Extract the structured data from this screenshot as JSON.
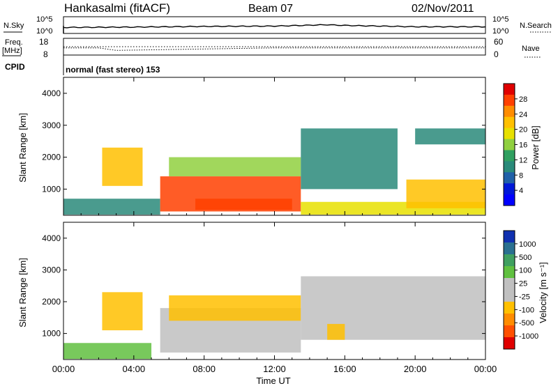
{
  "header": {
    "station": "Hankasalmi (fitACF)",
    "beam": "Beam 07",
    "date": "02/Nov/2011"
  },
  "noise_panel": {
    "left_label": "N.Sky",
    "right_label": "N.Search",
    "y_ticks": [
      "10^5",
      "10^0"
    ],
    "right_ticks": [
      "10^5",
      "10^0"
    ]
  },
  "freq_panel": {
    "left_label_lines": [
      "Freq.",
      "[MHz]"
    ],
    "left_ticks": [
      "18",
      "8"
    ],
    "right_label": "Nave",
    "right_ticks": [
      "60",
      "0"
    ]
  },
  "cpid": {
    "label": "CPID",
    "value": "normal (fast stereo) 153"
  },
  "power_panel": {
    "ylabel": "Slant Range [km]",
    "colorbar_label": "Power [dB]",
    "colorbar_ticks": [
      "28",
      "24",
      "20",
      "16",
      "12",
      "8",
      "4"
    ],
    "colorbar_colors": [
      "#e00000",
      "#ff4000",
      "#ff8c00",
      "#ffc000",
      "#e8e000",
      "#90d040",
      "#30a060",
      "#2a8a7a",
      "#2060a8",
      "#0018d8",
      "#0000ff"
    ]
  },
  "velocity_panel": {
    "ylabel": "Slant Range [km]",
    "colorbar_label": "Velocity [m s⁻¹]",
    "colorbar_ticks": [
      "1000",
      "500",
      "100",
      "25",
      "-25",
      "-100",
      "-500",
      "-1000"
    ],
    "colorbar_colors": [
      "#1030b0",
      "#2a7090",
      "#40a060",
      "#60c040",
      "#c0c0c0",
      "#c0c0c0",
      "#ffc000",
      "#ff8c00",
      "#ff5000",
      "#e00000"
    ]
  },
  "x_axis": {
    "label": "Time UT",
    "ticks": [
      "00:00",
      "04:00",
      "08:00",
      "12:00",
      "16:00",
      "20:00",
      "00:00"
    ]
  },
  "chart_data": [
    {
      "type": "line",
      "name": "noise",
      "x": [
        "00:00",
        "04:00",
        "08:00",
        "12:00",
        "15:00",
        "16:00",
        "20:00",
        "24:00"
      ],
      "series": [
        {
          "values": [
            1.8,
            1.9,
            2.1,
            2.2,
            2.6,
            2.4,
            2.0,
            2.0
          ]
        }
      ],
      "ylim": [
        0,
        5
      ],
      "yscale": "log"
    },
    {
      "type": "line",
      "name": "frequency",
      "x": [
        "00:00",
        "02:00",
        "03:00",
        "12:00",
        "24:00"
      ],
      "series": [
        {
          "values": [
            12.3,
            12.3,
            10.8,
            12.3,
            12.3
          ]
        }
      ],
      "ylim": [
        8,
        18
      ]
    },
    {
      "type": "heatmap",
      "name": "power",
      "xlim": [
        0,
        24
      ],
      "ylim": [
        180,
        4500
      ],
      "zlabel": "Power [dB]",
      "zlim": [
        0,
        30
      ],
      "grid": false,
      "regions": [
        {
          "t0": 0.0,
          "t1": 5.5,
          "r0": 200,
          "r1": 700,
          "z": 8
        },
        {
          "t0": 2.2,
          "t1": 4.5,
          "r0": 1100,
          "r1": 2300,
          "z": 22
        },
        {
          "t0": 5.5,
          "t1": 13.5,
          "r0": 300,
          "r1": 1400,
          "z": 26
        },
        {
          "t0": 7.5,
          "t1": 13.0,
          "r0": 350,
          "r1": 700,
          "z": 28
        },
        {
          "t0": 6.0,
          "t1": 13.5,
          "r0": 1400,
          "r1": 2000,
          "z": 14
        },
        {
          "t0": 13.5,
          "t1": 19.0,
          "r0": 1000,
          "r1": 2900,
          "z": 10
        },
        {
          "t0": 13.5,
          "t1": 24.0,
          "r0": 200,
          "r1": 600,
          "z": 18
        },
        {
          "t0": 19.5,
          "t1": 24.0,
          "r0": 400,
          "r1": 1300,
          "z": 20
        },
        {
          "t0": 20.0,
          "t1": 24.0,
          "r0": 2400,
          "r1": 2900,
          "z": 10
        }
      ]
    },
    {
      "type": "heatmap",
      "name": "velocity",
      "xlim": [
        0,
        24
      ],
      "ylim": [
        180,
        4500
      ],
      "zlabel": "Velocity [m s⁻¹]",
      "zlim": [
        -1000,
        1000
      ],
      "grid": false,
      "regions": [
        {
          "t0": 0.0,
          "t1": 5.0,
          "r0": 200,
          "r1": 700,
          "z": 80
        },
        {
          "t0": 2.2,
          "t1": 4.5,
          "r0": 1100,
          "r1": 2300,
          "z": -300
        },
        {
          "t0": 5.5,
          "t1": 13.5,
          "r0": 400,
          "r1": 1800,
          "z": 0
        },
        {
          "t0": 6.0,
          "t1": 13.5,
          "r0": 1400,
          "r1": 2200,
          "z": -200
        },
        {
          "t0": 13.5,
          "t1": 24.0,
          "r0": 800,
          "r1": 2800,
          "z": 0
        },
        {
          "t0": 15.0,
          "t1": 16.0,
          "r0": 800,
          "r1": 1300,
          "z": -400
        }
      ]
    }
  ]
}
